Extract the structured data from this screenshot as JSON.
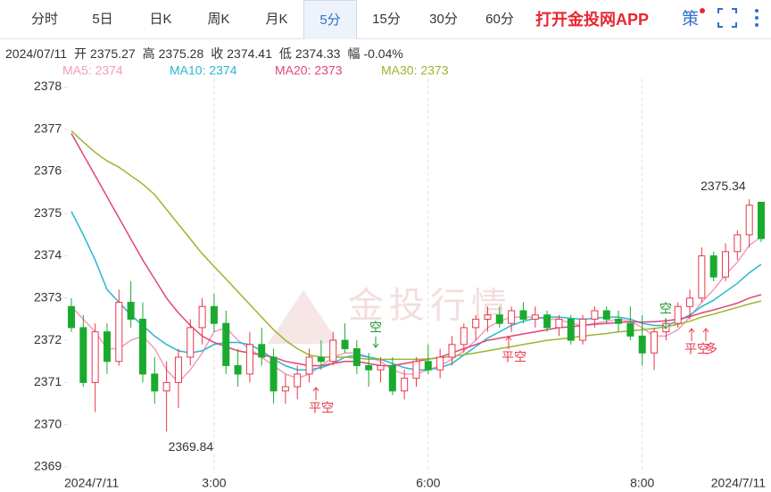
{
  "tabs": [
    "分时",
    "5日",
    "日K",
    "周K",
    "月K",
    "5分",
    "15分",
    "30分",
    "60分"
  ],
  "active_tab": 5,
  "app_promo": "打开金投网APP",
  "strategy_icon": "策",
  "info": {
    "date": "2024/07/11",
    "items": [
      {
        "label": "开",
        "value": "2375.27"
      },
      {
        "label": "高",
        "value": "2375.28"
      },
      {
        "label": "收",
        "value": "2374.41"
      },
      {
        "label": "低",
        "value": "2374.33"
      },
      {
        "label": "幅",
        "value": "-0.04%"
      }
    ]
  },
  "chart_data": {
    "type": "candlestick",
    "categories": [
      "2024/7/11",
      null,
      null,
      null,
      null,
      null,
      null,
      null,
      null,
      null,
      null,
      null,
      "3:00",
      null,
      null,
      null,
      null,
      null,
      null,
      null,
      null,
      null,
      null,
      null,
      null,
      null,
      null,
      null,
      null,
      null,
      "6:00",
      null,
      null,
      null,
      null,
      null,
      null,
      null,
      null,
      null,
      null,
      null,
      null,
      null,
      null,
      null,
      null,
      null,
      "8:00",
      null,
      null,
      null,
      null,
      null,
      null,
      null,
      null,
      null,
      "2024/7/11"
    ],
    "open": [
      2372.8,
      2372.3,
      2371.0,
      2372.2,
      2371.5,
      2372.9,
      2372.5,
      2371.2,
      2370.8,
      2371.0,
      2371.6,
      2372.3,
      2372.8,
      2372.4,
      2371.4,
      2371.2,
      2371.9,
      2371.6,
      2370.8,
      2370.9,
      2371.2,
      2371.6,
      2371.5,
      2372.0,
      2371.8,
      2371.4,
      2371.3,
      2371.4,
      2370.8,
      2371.1,
      2371.5,
      2371.3,
      2371.6,
      2371.9,
      2372.3,
      2372.5,
      2372.6,
      2372.4,
      2372.7,
      2372.5,
      2372.6,
      2372.3,
      2372.5,
      2372.0,
      2372.5,
      2372.7,
      2372.5,
      2372.4,
      2372.1,
      2371.7,
      2372.2,
      2372.4,
      2372.8,
      2373.0,
      2374.0,
      2373.5,
      2374.1,
      2374.5,
      2375.27
    ],
    "high": [
      2373.0,
      2372.6,
      2372.4,
      2372.4,
      2373.2,
      2373.4,
      2372.9,
      2371.6,
      2371.5,
      2371.8,
      2372.5,
      2373.0,
      2373.1,
      2372.7,
      2371.8,
      2372.2,
      2372.3,
      2371.8,
      2371.2,
      2371.4,
      2371.8,
      2372.0,
      2372.2,
      2372.4,
      2372.0,
      2371.7,
      2371.6,
      2371.6,
      2371.3,
      2371.6,
      2371.9,
      2371.8,
      2372.1,
      2372.4,
      2372.6,
      2372.8,
      2372.8,
      2372.8,
      2372.9,
      2372.8,
      2372.7,
      2372.6,
      2372.6,
      2372.6,
      2372.8,
      2372.8,
      2372.7,
      2372.8,
      2372.6,
      2372.3,
      2372.5,
      2372.9,
      2373.2,
      2374.2,
      2374.1,
      2374.3,
      2374.6,
      2375.34,
      2375.28
    ],
    "low": [
      2372.2,
      2370.9,
      2370.3,
      2371.2,
      2371.4,
      2372.3,
      2371.0,
      2370.5,
      2369.84,
      2370.4,
      2371.4,
      2371.9,
      2372.2,
      2371.2,
      2370.9,
      2371.0,
      2371.4,
      2370.5,
      2370.5,
      2370.6,
      2371.0,
      2371.3,
      2371.4,
      2371.7,
      2371.2,
      2370.9,
      2371.0,
      2370.7,
      2370.6,
      2370.9,
      2371.2,
      2371.1,
      2371.4,
      2371.7,
      2372.0,
      2372.2,
      2372.3,
      2372.2,
      2372.4,
      2372.3,
      2372.2,
      2372.1,
      2371.9,
      2371.9,
      2372.3,
      2372.4,
      2372.2,
      2372.0,
      2371.4,
      2371.3,
      2372.0,
      2372.3,
      2372.5,
      2372.9,
      2373.4,
      2373.4,
      2373.9,
      2374.2,
      2374.33
    ],
    "close": [
      2372.3,
      2371.0,
      2372.2,
      2371.5,
      2372.9,
      2372.5,
      2371.2,
      2370.8,
      2371.0,
      2371.6,
      2372.3,
      2372.8,
      2372.4,
      2371.4,
      2371.2,
      2371.9,
      2371.6,
      2370.8,
      2370.9,
      2371.2,
      2371.6,
      2371.5,
      2372.0,
      2371.8,
      2371.4,
      2371.3,
      2371.4,
      2370.8,
      2371.1,
      2371.5,
      2371.3,
      2371.6,
      2371.9,
      2372.3,
      2372.5,
      2372.6,
      2372.4,
      2372.7,
      2372.5,
      2372.6,
      2372.3,
      2372.5,
      2372.0,
      2372.5,
      2372.7,
      2372.5,
      2372.4,
      2372.1,
      2371.7,
      2372.2,
      2372.4,
      2372.8,
      2373.0,
      2374.0,
      2373.5,
      2374.1,
      2374.5,
      2375.2,
      2374.41
    ],
    "up_color": "#e8384a",
    "down_color": "#1aab2e",
    "ma": [
      {
        "name": "MA5: 2374",
        "color": "#f39bbf",
        "values": [
          2372.8,
          2372.5,
          2372.2,
          2371.8,
          2371.8,
          2372.0,
          2372.1,
          2371.8,
          2371.3,
          2371.0,
          2371.3,
          2371.7,
          2372.2,
          2372.3,
          2372.0,
          2371.8,
          2371.6,
          2371.4,
          2371.2,
          2371.1,
          2371.2,
          2371.4,
          2371.6,
          2371.7,
          2371.7,
          2371.6,
          2371.5,
          2371.3,
          2371.2,
          2371.2,
          2371.3,
          2371.4,
          2371.55,
          2371.75,
          2372.0,
          2372.3,
          2372.45,
          2372.55,
          2372.55,
          2372.55,
          2372.5,
          2372.5,
          2372.4,
          2372.35,
          2372.4,
          2372.45,
          2372.5,
          2372.45,
          2372.3,
          2372.1,
          2372.1,
          2372.25,
          2372.55,
          2372.9,
          2373.2,
          2373.55,
          2373.85,
          2374.25,
          2374.45
        ]
      },
      {
        "name": "MA10: 2374",
        "color": "#2bb5d0",
        "values": [
          2375.05,
          2374.5,
          2373.9,
          2373.2,
          2372.9,
          2372.6,
          2372.35,
          2372.1,
          2371.9,
          2371.75,
          2371.7,
          2371.75,
          2371.9,
          2371.95,
          2371.95,
          2371.9,
          2371.75,
          2371.55,
          2371.4,
          2371.3,
          2371.3,
          2371.35,
          2371.45,
          2371.6,
          2371.65,
          2371.6,
          2371.55,
          2371.45,
          2371.35,
          2371.3,
          2371.3,
          2371.35,
          2371.45,
          2371.65,
          2371.85,
          2372.05,
          2372.2,
          2372.35,
          2372.45,
          2372.52,
          2372.55,
          2372.55,
          2372.52,
          2372.5,
          2372.52,
          2372.55,
          2372.55,
          2372.5,
          2372.4,
          2372.35,
          2372.35,
          2372.45,
          2372.6,
          2372.8,
          2372.95,
          2373.15,
          2373.35,
          2373.6,
          2373.8
        ]
      },
      {
        "name": "MA20: 2373",
        "color": "#e0457b",
        "values": [
          2376.9,
          2376.4,
          2375.9,
          2375.4,
          2374.9,
          2374.4,
          2373.9,
          2373.45,
          2373.0,
          2372.65,
          2372.35,
          2372.1,
          2371.95,
          2371.85,
          2371.75,
          2371.7,
          2371.65,
          2371.6,
          2371.5,
          2371.45,
          2371.4,
          2371.4,
          2371.45,
          2371.5,
          2371.5,
          2371.45,
          2371.4,
          2371.4,
          2371.45,
          2371.5,
          2371.55,
          2371.6,
          2371.7,
          2371.8,
          2371.9,
          2372.0,
          2372.05,
          2372.1,
          2372.15,
          2372.2,
          2372.25,
          2372.3,
          2372.32,
          2372.35,
          2372.38,
          2372.4,
          2372.42,
          2372.44,
          2372.43,
          2372.44,
          2372.46,
          2372.5,
          2372.56,
          2372.65,
          2372.72,
          2372.8,
          2372.88,
          2373.0,
          2373.08
        ]
      },
      {
        "name": "MA30: 2373",
        "color": "#9cb530",
        "values": [
          2376.96,
          2376.7,
          2376.45,
          2376.25,
          2376.1,
          2375.9,
          2375.7,
          2375.45,
          2375.1,
          2374.75,
          2374.4,
          2374.05,
          2373.75,
          2373.45,
          2373.15,
          2372.85,
          2372.55,
          2372.25,
          2372.0,
          2371.8,
          2371.65,
          2371.6,
          2371.6,
          2371.6,
          2371.58,
          2371.55,
          2371.55,
          2371.55,
          2371.55,
          2371.55,
          2371.56,
          2371.58,
          2371.62,
          2371.66,
          2371.7,
          2371.75,
          2371.8,
          2371.85,
          2371.9,
          2371.95,
          2372.0,
          2372.03,
          2372.06,
          2372.1,
          2372.13,
          2372.16,
          2372.2,
          2372.22,
          2372.25,
          2372.28,
          2372.32,
          2372.38,
          2372.45,
          2372.55,
          2372.62,
          2372.7,
          2372.78,
          2372.86,
          2372.93
        ]
      }
    ],
    "ylim": [
      2368.85,
      2378.2
    ],
    "yticks": [
      2369,
      2370,
      2371,
      2372,
      2373,
      2374,
      2375,
      2376,
      2377,
      2378
    ],
    "grid": true,
    "annotations": [
      "平空",
      "空",
      "平空",
      "空",
      "平空",
      "多"
    ],
    "watermark": "金投行情"
  }
}
